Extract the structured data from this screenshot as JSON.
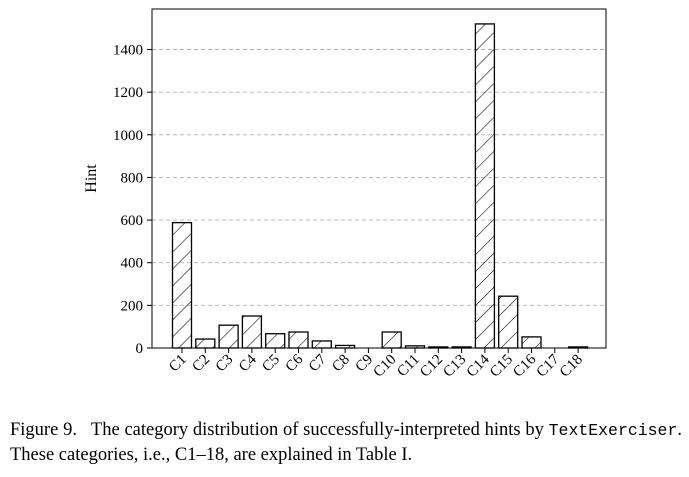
{
  "chart_data": {
    "type": "bar",
    "categories": [
      "C1",
      "C2",
      "C3",
      "C4",
      "C5",
      "C6",
      "C7",
      "C8",
      "C9",
      "C10",
      "C11",
      "C12",
      "C13",
      "C14",
      "C15",
      "C16",
      "C17",
      "C18"
    ],
    "values": [
      588,
      42,
      107,
      150,
      67,
      75,
      33,
      12,
      0,
      75,
      10,
      5,
      5,
      1520,
      243,
      52,
      0,
      5
    ],
    "ylabel": "Hint",
    "ylim": [
      0,
      1590
    ],
    "yticks": [
      0,
      200,
      400,
      600,
      800,
      1000,
      1200,
      1400
    ],
    "grid": "horizontal-dashed",
    "bar_fill": "hatched",
    "bar_edge_color": "#000000"
  },
  "caption": {
    "label": "Figure 9.",
    "text_before": "The category distribution of successfully-interpreted hints by",
    "code": "TextExerciser",
    "text_after": ". These categories, i.e., C1–18, are explained in Table I."
  }
}
